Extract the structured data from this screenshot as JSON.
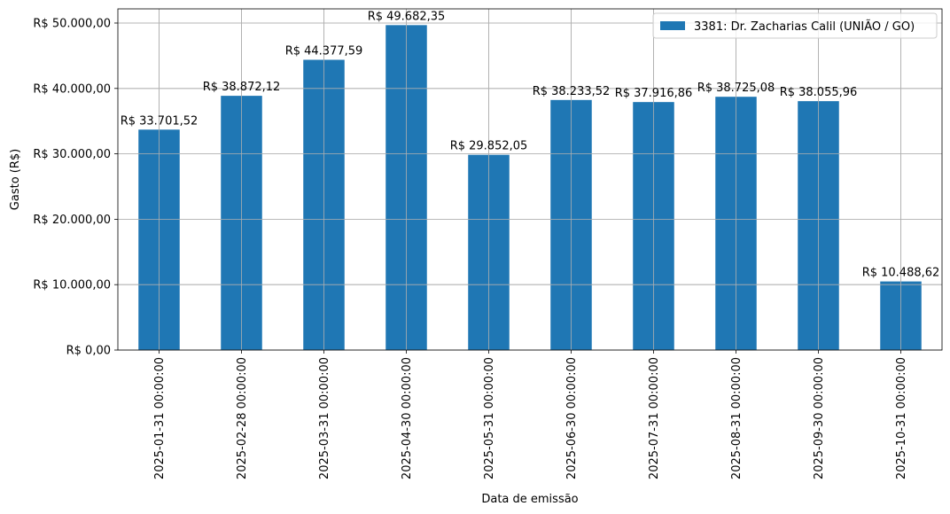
{
  "chart_data": {
    "type": "bar",
    "xlabel": "Data de emissão",
    "ylabel": "Gasto (R$)",
    "categories": [
      "2025-01-31 00:00:00",
      "2025-02-28 00:00:00",
      "2025-03-31 00:00:00",
      "2025-04-30 00:00:00",
      "2025-05-31 00:00:00",
      "2025-06-30 00:00:00",
      "2025-07-31 00:00:00",
      "2025-08-31 00:00:00",
      "2025-09-30 00:00:00",
      "2025-10-31 00:00:00"
    ],
    "series": [
      {
        "name": "3381: Dr. Zacharias Calil (UNIÃO / GO)",
        "color": "#1f77b4",
        "values": [
          33701.52,
          38872.12,
          44377.59,
          49682.35,
          29852.05,
          38233.52,
          37916.86,
          38725.08,
          38055.96,
          10488.62
        ]
      }
    ],
    "data_labels": [
      "R$ 33.701,52",
      "R$ 38.872,12",
      "R$ 44.377,59",
      "R$ 49.682,35",
      "R$ 29.852,05",
      "R$ 38.233,52",
      "R$ 37.916,86",
      "R$ 38.725,08",
      "R$ 38.055,96",
      "R$ 10.488,62"
    ],
    "yticks": [
      0,
      10000,
      20000,
      30000,
      40000,
      50000
    ],
    "ytick_labels": [
      "R$ 0,00",
      "R$ 10.000,00",
      "R$ 20.000,00",
      "R$ 30.000,00",
      "R$ 40.000,00",
      "R$ 50.000,00"
    ],
    "ylim": [
      0,
      52166.47
    ],
    "grid": true,
    "legend_position": "top-right"
  }
}
